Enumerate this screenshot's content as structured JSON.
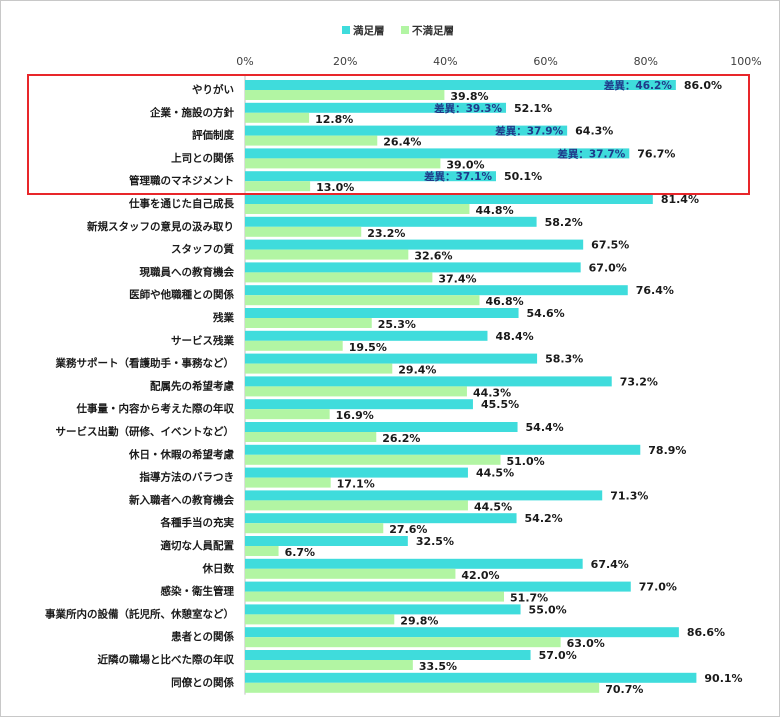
{
  "chart_data": {
    "type": "bar",
    "orientation": "horizontal",
    "xlim": [
      0,
      100
    ],
    "ticks": [
      "0%",
      "20%",
      "40%",
      "60%",
      "80%",
      "100%"
    ],
    "tick_values": [
      0,
      20,
      40,
      60,
      80,
      100
    ],
    "legend_position": "top-center",
    "series": [
      {
        "name": "満足層",
        "color": "#3fdcdc"
      },
      {
        "name": "不満足層",
        "color": "#b2f5a3"
      }
    ],
    "highlight_color": "#e8262a",
    "categories": [
      {
        "label": "やりがい",
        "satisfied": 86.0,
        "dissatisfied": 39.8,
        "diff": "差異：46.2%",
        "highlight": true
      },
      {
        "label": "企業・施設の方針",
        "satisfied": 52.1,
        "dissatisfied": 12.8,
        "diff": "差異：39.3%",
        "highlight": true
      },
      {
        "label": "評価制度",
        "satisfied": 64.3,
        "dissatisfied": 26.4,
        "diff": "差異：37.9%",
        "highlight": true
      },
      {
        "label": "上司との関係",
        "satisfied": 76.7,
        "dissatisfied": 39.0,
        "diff": "差異：37.7%",
        "highlight": true
      },
      {
        "label": "管理職のマネジメント",
        "satisfied": 50.1,
        "dissatisfied": 13.0,
        "diff": "差異：37.1%",
        "highlight": true
      },
      {
        "label": "仕事を通じた自己成長",
        "satisfied": 81.4,
        "dissatisfied": 44.8
      },
      {
        "label": "新規スタッフの意見の汲み取り",
        "satisfied": 58.2,
        "dissatisfied": 23.2
      },
      {
        "label": "スタッフの質",
        "satisfied": 67.5,
        "dissatisfied": 32.6
      },
      {
        "label": "現職員への教育機会",
        "satisfied": 67.0,
        "dissatisfied": 37.4
      },
      {
        "label": "医師や他職種との関係",
        "satisfied": 76.4,
        "dissatisfied": 46.8
      },
      {
        "label": "残業",
        "satisfied": 54.6,
        "dissatisfied": 25.3
      },
      {
        "label": "サービス残業",
        "satisfied": 48.4,
        "dissatisfied": 19.5
      },
      {
        "label": "業務サポート（看護助手・事務など）",
        "satisfied": 58.3,
        "dissatisfied": 29.4
      },
      {
        "label": "配属先の希望考慮",
        "satisfied": 73.2,
        "dissatisfied": 44.3
      },
      {
        "label": "仕事量・内容から考えた際の年収",
        "satisfied": 45.5,
        "dissatisfied": 16.9
      },
      {
        "label": "サービス出勤（研修、イベントなど）",
        "satisfied": 54.4,
        "dissatisfied": 26.2
      },
      {
        "label": "休日・休暇の希望考慮",
        "satisfied": 78.9,
        "dissatisfied": 51.0
      },
      {
        "label": "指導方法のバラつき",
        "satisfied": 44.5,
        "dissatisfied": 17.1
      },
      {
        "label": "新入職者への教育機会",
        "satisfied": 71.3,
        "dissatisfied": 44.5
      },
      {
        "label": "各種手当の充実",
        "satisfied": 54.2,
        "dissatisfied": 27.6
      },
      {
        "label": "適切な人員配置",
        "satisfied": 32.5,
        "dissatisfied": 6.7
      },
      {
        "label": "休日数",
        "satisfied": 67.4,
        "dissatisfied": 42.0
      },
      {
        "label": "感染・衛生管理",
        "satisfied": 77.0,
        "dissatisfied": 51.7
      },
      {
        "label": "事業所内の設備（託児所、休憩室など）",
        "satisfied": 55.0,
        "dissatisfied": 29.8
      },
      {
        "label": "患者との関係",
        "satisfied": 86.6,
        "dissatisfied": 63.0
      },
      {
        "label": "近隣の職場と比べた際の年収",
        "satisfied": 57.0,
        "dissatisfied": 33.5
      },
      {
        "label": "同僚との関係",
        "satisfied": 90.1,
        "dissatisfied": 70.7
      }
    ]
  }
}
